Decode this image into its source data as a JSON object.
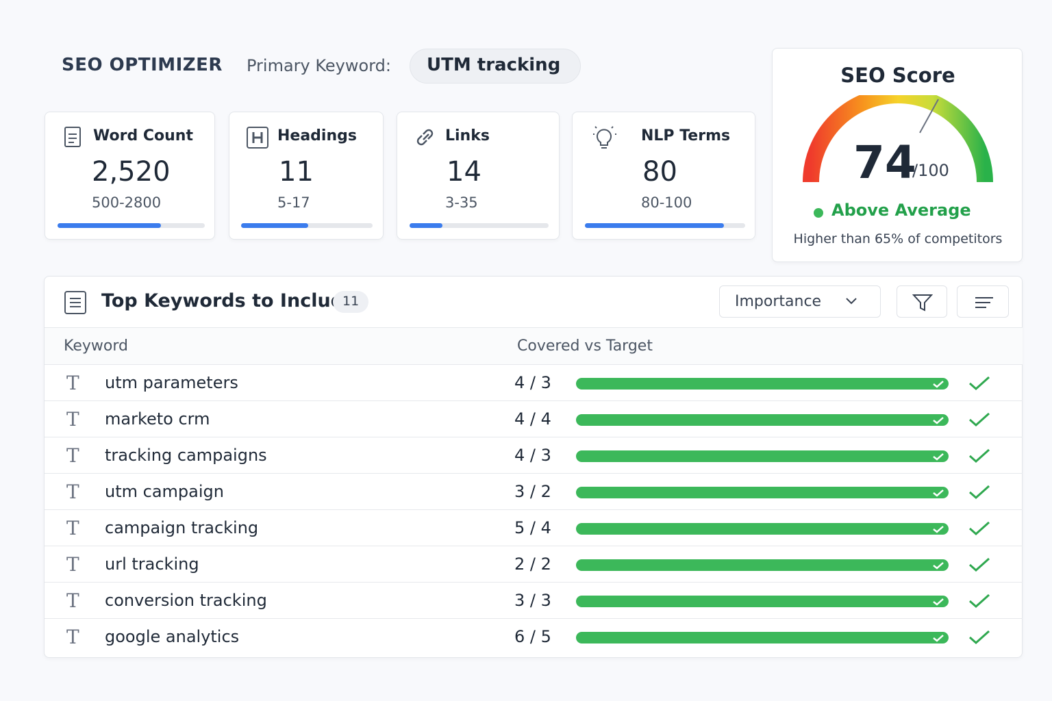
{
  "header": {
    "brand": "SEO OPTIMIZER",
    "keyword_label": "Primary Keyword:",
    "keyword": "UTM tracking"
  },
  "metrics": [
    {
      "label": "Word Count",
      "value": "2,520",
      "range": "500-2800"
    },
    {
      "label": "Headings",
      "value": "11",
      "range": "5-17"
    },
    {
      "label": "Links",
      "value": "14",
      "range": "3-35"
    },
    {
      "label": "NLP Terms",
      "value": "80",
      "range": "80-100"
    }
  ],
  "score": {
    "title": "SEO Score",
    "value": "74",
    "max": "/100",
    "status": "Above Average",
    "note": "Higher than 65% of competitors"
  },
  "keywords": {
    "title": "Top Keywords to Include",
    "count": "11",
    "sort": "Importance",
    "columns": [
      "Keyword",
      "Covered vs Target"
    ],
    "rows": [
      {
        "term": "utm parameters",
        "covered": "4 / 3"
      },
      {
        "term": "marketo crm",
        "covered": "4 / 4"
      },
      {
        "term": "tracking campaigns",
        "covered": "4 / 3"
      },
      {
        "term": "utm campaign",
        "covered": "3 / 2"
      },
      {
        "term": "campaign tracking",
        "covered": "5 / 4"
      },
      {
        "term": "url tracking",
        "covered": "2 / 2"
      },
      {
        "term": "conversion tracking",
        "covered": "3 / 3"
      },
      {
        "term": "google analytics",
        "covered": "6 / 5"
      }
    ]
  }
}
